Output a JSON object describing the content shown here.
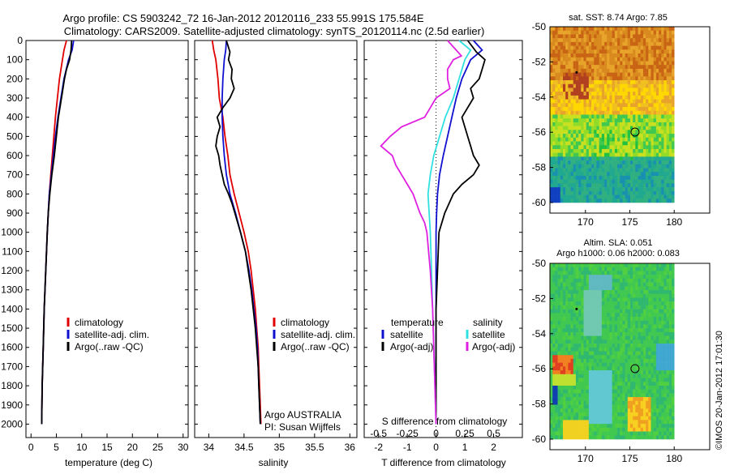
{
  "header": {
    "line1": "Argo profile: CS 5903242_72 16-Jan-2012 20120116_233 55.991S 175.584E",
    "line2": "Climatology: CARS2009. Satellite-adjusted climatology: synTS_20120114.nc (2.5d earlier)"
  },
  "credit": "©IMOS 20-Jan-2012 17:01:30",
  "colors": {
    "climatology": "#e00000",
    "satellite": "#1010d0",
    "argo": "#000000",
    "sat_salinity": "#30e0e0",
    "argo_salinity_diff": "#e020e0"
  },
  "chart_data": [
    {
      "type": "line",
      "title": "",
      "xlabel": "temperature (deg C)",
      "ylabel": "",
      "xlim": [
        -1,
        31
      ],
      "ylim": [
        2070,
        0
      ],
      "xticks": [
        0,
        5,
        10,
        15,
        20,
        25,
        30
      ],
      "yticks": [
        0,
        100,
        200,
        300,
        400,
        500,
        600,
        700,
        800,
        900,
        1000,
        1100,
        1200,
        1300,
        1400,
        1500,
        1600,
        1700,
        1800,
        1900,
        2000
      ],
      "legend": {
        "placement": "lower-center",
        "entries": [
          "climatology",
          "satellite-adj. clim.",
          "Argo(..raw -QC)"
        ]
      },
      "series": [
        {
          "name": "climatology",
          "color": "#e00000",
          "depth": [
            0,
            50,
            100,
            200,
            300,
            400,
            500,
            600,
            700,
            800,
            900,
            1000,
            1200,
            1400,
            1600,
            1800,
            2000
          ],
          "values": [
            7.0,
            6.5,
            6.2,
            5.6,
            5.2,
            4.8,
            4.5,
            4.2,
            3.9,
            3.6,
            3.4,
            3.2,
            2.9,
            2.6,
            2.4,
            2.2,
            2.1
          ]
        },
        {
          "name": "satellite-adj. clim.",
          "color": "#1010d0",
          "depth": [
            0,
            50,
            100,
            200,
            300,
            400,
            500,
            600,
            700,
            800,
            900,
            1000,
            1200,
            1400,
            1600,
            1800,
            2000
          ],
          "values": [
            8.4,
            8.1,
            7.4,
            6.5,
            5.9,
            5.3,
            4.8,
            4.4,
            4.0,
            3.6,
            3.4,
            3.2,
            2.9,
            2.6,
            2.4,
            2.2,
            2.1
          ]
        },
        {
          "name": "Argo(..raw -QC)",
          "color": "#000000",
          "depth": [
            0,
            50,
            100,
            150,
            200,
            300,
            400,
            500,
            600,
            700,
            800,
            900,
            1000,
            1200,
            1400,
            1600,
            1800,
            2000
          ],
          "values": [
            8.0,
            7.9,
            7.6,
            7.0,
            6.6,
            6.0,
            5.4,
            5.0,
            4.6,
            4.1,
            3.7,
            3.4,
            3.2,
            2.9,
            2.6,
            2.4,
            2.2,
            2.1
          ]
        }
      ]
    },
    {
      "type": "line",
      "title": "",
      "xlabel": "salinity",
      "ylabel": "",
      "xlim": [
        33.8,
        36.1
      ],
      "ylim": [
        2070,
        0
      ],
      "xticks": [
        34,
        34.5,
        35,
        35.5,
        36
      ],
      "legend": {
        "placement": "lower-right",
        "entries": [
          "climatology",
          "satellite-adj. clim.",
          "Argo(..raw -QC)"
        ]
      },
      "annotation": [
        "Argo AUSTRALIA",
        "PI: Susan Wijffels"
      ],
      "series": [
        {
          "name": "climatology",
          "color": "#e00000",
          "depth": [
            0,
            50,
            100,
            200,
            300,
            400,
            500,
            600,
            700,
            800,
            900,
            1000,
            1100,
            1200,
            1300,
            1400,
            1500,
            1600,
            1700,
            1800,
            1900,
            2000
          ],
          "values": [
            34.05,
            34.07,
            34.1,
            34.13,
            34.15,
            34.2,
            34.23,
            34.27,
            34.3,
            34.36,
            34.43,
            34.5,
            34.56,
            34.6,
            34.63,
            34.66,
            34.68,
            34.7,
            34.71,
            34.72,
            34.73,
            34.74
          ]
        },
        {
          "name": "satellite-adj. clim.",
          "color": "#1010d0",
          "depth": [
            0,
            50,
            100,
            200,
            300,
            400,
            500,
            600,
            700,
            800,
            900,
            1000,
            1100,
            1200,
            1300,
            1400,
            1500,
            1600,
            1700,
            1800,
            1900,
            2000
          ],
          "values": [
            34.25,
            34.24,
            34.22,
            34.2,
            34.19,
            34.19,
            34.2,
            34.22,
            34.25,
            34.3,
            34.38,
            34.45,
            34.52,
            34.57,
            34.61,
            34.64,
            34.67,
            34.69,
            34.7,
            34.71,
            34.72,
            34.73
          ]
        },
        {
          "name": "Argo(..raw -QC)",
          "color": "#000000",
          "depth": [
            0,
            60,
            100,
            150,
            200,
            250,
            300,
            350,
            400,
            450,
            500,
            550,
            600,
            650,
            700,
            750,
            800,
            850,
            900,
            1000,
            1100,
            1200,
            1300,
            1400,
            1500,
            1600,
            1700,
            1800,
            1900,
            2000
          ],
          "values": [
            34.25,
            34.3,
            34.28,
            34.33,
            34.32,
            34.36,
            34.3,
            34.2,
            34.12,
            34.16,
            34.12,
            34.1,
            34.14,
            34.16,
            34.19,
            34.22,
            34.28,
            34.33,
            34.37,
            34.45,
            34.52,
            34.56,
            34.6,
            34.63,
            34.66,
            34.68,
            34.7,
            34.71,
            34.72,
            34.73
          ]
        }
      ]
    },
    {
      "type": "line",
      "title": "",
      "xlabel": "T difference from climatology",
      "secondary_xlabel": "S difference from climatology",
      "ylabel": "",
      "xlim": [
        -2.5,
        3.0
      ],
      "ylim": [
        2070,
        0
      ],
      "xticks": [
        -2,
        -1,
        0,
        1,
        2
      ],
      "secondary_xticks": [
        "-0.5",
        "-0.25",
        "0",
        "0.25",
        "0.5"
      ],
      "legend": {
        "placement": "lower-center",
        "headings": [
          "temperature",
          "salinity"
        ],
        "entries": [
          "satellite",
          "Argo(-adj)",
          "satellite",
          "Argo(-adj)"
        ]
      },
      "series": [
        {
          "name": "satellite",
          "color": "#1010d0",
          "depth": [
            0,
            50,
            100,
            200,
            300,
            400,
            500,
            600,
            700,
            800,
            900,
            1000,
            1200,
            1400,
            1600,
            1800,
            2000
          ],
          "values": [
            1.3,
            1.6,
            1.2,
            0.9,
            0.7,
            0.55,
            0.4,
            0.25,
            0.12,
            0.05,
            0.02,
            0.0,
            0.0,
            0.0,
            0.0,
            0.0,
            0.0
          ]
        },
        {
          "name": "Argo(-adj)",
          "color": "#000000",
          "depth": [
            0,
            60,
            100,
            150,
            200,
            250,
            300,
            400,
            500,
            550,
            600,
            650,
            700,
            750,
            800,
            900,
            1000,
            1200,
            1400,
            1600,
            1800,
            2000
          ],
          "values": [
            1.1,
            1.4,
            1.7,
            1.6,
            1.5,
            1.2,
            1.3,
            0.9,
            1.1,
            1.2,
            1.3,
            1.5,
            1.3,
            0.9,
            0.6,
            0.3,
            0.1,
            0.05,
            0.0,
            0.0,
            0.0,
            0.0
          ]
        },
        {
          "name": "satellite",
          "color": "#30e0e0",
          "depth": [
            0,
            50,
            100,
            200,
            300,
            400,
            500,
            600,
            700,
            800,
            900,
            1000,
            1200,
            1400,
            1600,
            1800,
            2000
          ],
          "values": [
            0.2,
            0.3,
            0.25,
            0.2,
            0.15,
            0.08,
            0.03,
            -0.02,
            -0.05,
            -0.07,
            -0.06,
            -0.05,
            -0.04,
            -0.03,
            -0.02,
            -0.01,
            0.0
          ]
        },
        {
          "name": "Argo(-adj)",
          "color": "#e020e0",
          "depth": [
            0,
            80,
            100,
            150,
            200,
            250,
            300,
            350,
            400,
            450,
            500,
            550,
            600,
            650,
            700,
            750,
            800,
            850,
            900,
            950,
            1000,
            1200,
            1400,
            1600,
            1800,
            2000
          ],
          "values": [
            0.1,
            0.22,
            0.15,
            0.1,
            0.1,
            0.12,
            0.0,
            -0.05,
            -0.1,
            -0.3,
            -0.4,
            -0.48,
            -0.38,
            -0.35,
            -0.3,
            -0.25,
            -0.2,
            -0.17,
            -0.14,
            -0.1,
            -0.08,
            -0.05,
            -0.03,
            -0.02,
            -0.01,
            0.0
          ]
        }
      ]
    },
    {
      "type": "heatmap",
      "title": "sat. SST: 8.74 Argo: 7.85",
      "xlim": [
        166,
        184
      ],
      "ylim": [
        -60.6,
        -50
      ],
      "xticks": [
        170,
        175,
        180
      ],
      "yticks": [
        -50,
        -52,
        -54,
        -56,
        -58,
        -60
      ],
      "profile_marker": {
        "lon": 175.584,
        "lat": -55.991
      },
      "secondary_marker": {
        "lon": 169,
        "lat": -52.6
      }
    },
    {
      "type": "heatmap",
      "title": "Altim. SLA: 0.051",
      "subtitle": "Argo h1000: 0.06 h2000: 0.083",
      "xlim": [
        166,
        184
      ],
      "ylim": [
        -60.6,
        -50
      ],
      "xticks": [
        170,
        175,
        180
      ],
      "yticks": [
        -50,
        -52,
        -54,
        -56,
        -58,
        -60
      ],
      "profile_marker": {
        "lon": 175.584,
        "lat": -55.991
      },
      "secondary_marker": {
        "lon": 169,
        "lat": -52.6
      }
    }
  ]
}
